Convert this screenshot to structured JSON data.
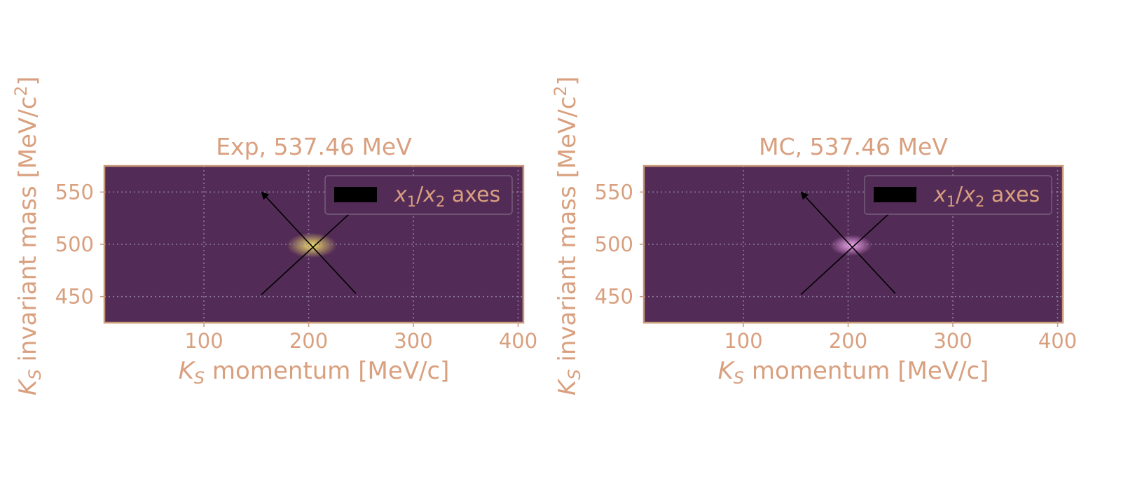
{
  "colors": {
    "text": "#d9a07f",
    "background": "#532b57",
    "frame": "#c99a78",
    "grid": "#8a7a9a",
    "arrow": "#000000",
    "exp_peak": "#f2e06a",
    "mc_peak": "#f5a8f0"
  },
  "chart_data": [
    {
      "type": "heatmap",
      "title": "Exp, 537.46 MeV",
      "xlabel_sym": "K",
      "xlabel_sub": "S",
      "xlabel_rest": " momentum [MeV/c]",
      "ylabel_sym": "K",
      "ylabel_sub": "S",
      "ylabel_rest": " invariant mass [MeV/c",
      "ylabel_sup": "2",
      "ylabel_end": "]",
      "xlim": [
        5,
        405
      ],
      "ylim": [
        425,
        575
      ],
      "xticks": [
        100,
        200,
        300,
        400
      ],
      "yticks": [
        450,
        500,
        550
      ],
      "grid": true,
      "legend_placement": "top-right",
      "legend_label": {
        "x1": "x",
        "sub1": "1",
        "slash": "/",
        "x2": "x",
        "sub2": "2",
        "rest": " axes"
      },
      "peak": {
        "x": 203,
        "y": 499,
        "color_key": "exp_peak",
        "sigma_x": 12,
        "sigma_y": 6
      },
      "axes_arrows": [
        {
          "x1": 155,
          "y1": 452,
          "x2": 255,
          "y2": 544
        },
        {
          "x1": 245,
          "y1": 453,
          "x2": 155,
          "y2": 550
        }
      ]
    },
    {
      "type": "heatmap",
      "title": "MC, 537.46 MeV",
      "xlabel_sym": "K",
      "xlabel_sub": "S",
      "xlabel_rest": " momentum [MeV/c]",
      "ylabel_sym": "K",
      "ylabel_sub": "S",
      "ylabel_rest": " invariant mass [MeV/c",
      "ylabel_sup": "2",
      "ylabel_end": "]",
      "xlim": [
        5,
        405
      ],
      "ylim": [
        425,
        575
      ],
      "xticks": [
        100,
        200,
        300,
        400
      ],
      "yticks": [
        450,
        500,
        550
      ],
      "grid": true,
      "legend_placement": "top-right",
      "legend_label": {
        "x1": "x",
        "sub1": "1",
        "slash": "/",
        "x2": "x",
        "sub2": "2",
        "rest": " axes"
      },
      "peak": {
        "x": 203,
        "y": 499,
        "color_key": "mc_peak",
        "sigma_x": 10,
        "sigma_y": 5
      },
      "axes_arrows": [
        {
          "x1": 155,
          "y1": 452,
          "x2": 255,
          "y2": 544
        },
        {
          "x1": 245,
          "y1": 453,
          "x2": 155,
          "y2": 550
        }
      ]
    }
  ]
}
